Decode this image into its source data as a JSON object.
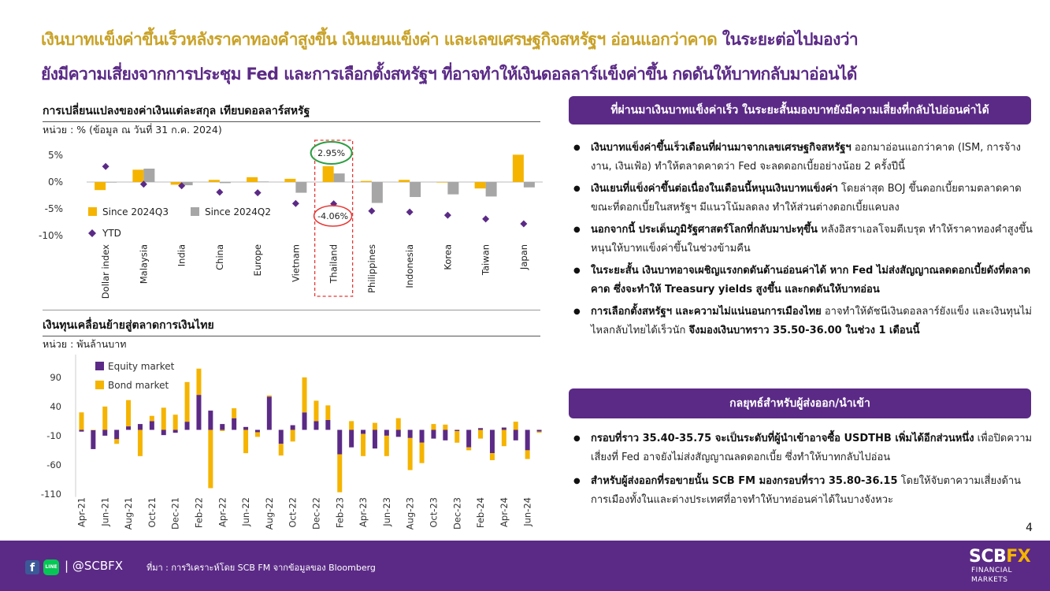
{
  "headline": {
    "line1_part1": "เงินบาทแข็งค่าขึ้นเร็วหลังราคาทองคำสูงขึ้น เงินเยนแข็งค่า และเลขเศรษฐกิจสหรัฐฯ อ่อนแอกว่าคาด",
    "line1_part2": "ในระยะต่อไปมองว่า",
    "line2": "ยังมีความเสี่ยงจากการประชุม Fed และการเลือกตั้งสหรัฐฯ ที่อาจทำให้เงินดอลลาร์แข็งค่าขึ้น กดดันให้บาทกลับมาอ่อนได้"
  },
  "colors": {
    "brand_purple": "#5b2a86",
    "gold": "#f5b400",
    "gray": "#a6a6a6",
    "ytd_purple": "#5b2a86",
    "highlight_red": "#e53935",
    "highlight_green": "#2e9e44",
    "headline_gold": "#c9a227"
  },
  "chart1": {
    "title": "การเปลี่ยนแปลงของค่าเงินแต่ละสกุล เทียบดอลลาร์สหรัฐ",
    "unit": "หน่วย : % (ข้อมูล ณ วันที่ 31 ก.ค. 2024)",
    "annotation_high": "2.95%",
    "annotation_low": "-4.06%"
  },
  "chart2": {
    "title": "เงินทุนเคลื่อนย้ายสู่ตลาดการเงินไทย",
    "unit": "หน่วย : พันล้านบาท"
  },
  "chart_data": [
    {
      "type": "bar",
      "categories": [
        "Dollar index",
        "Malaysia",
        "India",
        "China",
        "Europe",
        "Vietnam",
        "Thailand",
        "Philippines",
        "Indonesia",
        "Korea",
        "Taiwan",
        "Japan"
      ],
      "series": [
        {
          "name": "Since 2024Q3",
          "kind": "bar",
          "values": [
            -1.5,
            2.3,
            -0.5,
            0.4,
            0.9,
            0.6,
            2.95,
            0.2,
            0.4,
            -0.1,
            -1.2,
            5.1
          ]
        },
        {
          "name": "Since 2024Q2",
          "kind": "bar",
          "values": [
            -0.1,
            2.5,
            -0.6,
            -0.2,
            0.1,
            -2.0,
            1.6,
            -3.9,
            -2.8,
            -2.3,
            -2.7,
            -1.0
          ]
        },
        {
          "name": "YTD",
          "kind": "marker",
          "values": [
            2.9,
            -0.4,
            -0.7,
            -1.9,
            -2.0,
            -4.0,
            -4.06,
            -5.4,
            -5.6,
            -6.2,
            -6.9,
            -7.8
          ]
        }
      ],
      "yticks": [
        "5%",
        "0%",
        "-5%",
        "-10%"
      ],
      "ylim": [
        -10,
        5
      ],
      "legend": "inside-bottom-left",
      "highlight": "Thailand"
    },
    {
      "type": "bar",
      "stacked": true,
      "categories": [
        "Apr-21",
        "May-21",
        "Jun-21",
        "Jul-21",
        "Aug-21",
        "Sep-21",
        "Oct-21",
        "Nov-21",
        "Dec-21",
        "Jan-22",
        "Feb-22",
        "Mar-22",
        "Apr-22",
        "May-22",
        "Jun-22",
        "Jul-22",
        "Aug-22",
        "Sep-22",
        "Oct-22",
        "Nov-22",
        "Dec-22",
        "Jan-23",
        "Feb-23",
        "Mar-23",
        "Apr-23",
        "May-23",
        "Jun-23",
        "Jul-23",
        "Aug-23",
        "Sep-23",
        "Oct-23",
        "Nov-23",
        "Dec-23",
        "Jan-24",
        "Feb-24",
        "Mar-24",
        "Apr-24",
        "May-24",
        "Jun-24",
        "Jul-24"
      ],
      "tick_labels": [
        "Apr-21",
        "Jun-21",
        "Aug-21",
        "Oct-21",
        "Dec-21",
        "Feb-22",
        "Apr-22",
        "Jun-22",
        "Aug-22",
        "Oct-22",
        "Dec-22",
        "Feb-23",
        "Apr-23",
        "Jun-23",
        "Aug-23",
        "Oct-23",
        "Dec-23",
        "Feb-24",
        "Apr-24",
        "Jun-24"
      ],
      "series": [
        {
          "name": "Equity market",
          "values": [
            -3,
            -33,
            -10,
            -16,
            6,
            10,
            15,
            -9,
            -5,
            14,
            60,
            33,
            10,
            20,
            5,
            -4,
            57,
            -24,
            8,
            30,
            15,
            17,
            -42,
            -30,
            -7,
            -32,
            -10,
            -12,
            -14,
            -22,
            -15,
            -18,
            -2,
            -30,
            3,
            -40,
            4,
            -18,
            -35,
            -3
          ]
        },
        {
          "name": "Bond market",
          "values": [
            30,
            0,
            40,
            -8,
            45,
            -45,
            9,
            38,
            26,
            68,
            45,
            -100,
            -2,
            17,
            -40,
            -8,
            2,
            -20,
            -20,
            60,
            35,
            25,
            -65,
            15,
            -38,
            12,
            -35,
            20,
            -55,
            -35,
            10,
            9,
            -20,
            -5,
            -15,
            -12,
            -28,
            14,
            -15,
            -2
          ]
        }
      ],
      "yticks": [
        "90",
        "40",
        "-10",
        "-60",
        "-110"
      ],
      "ylim": [
        -115,
        115
      ],
      "legend": "top-left"
    }
  ],
  "panel1": {
    "banner": "ที่ผ่านมาเงินบาทแข็งค่าเร็ว ในระยะสั้นมองบาทยังมีความเสี่ยงที่กลับไปอ่อนค่าได้",
    "bullets": [
      {
        "bold": "เงินบาทแข็งค่าขึ้นเร็วเดือนที่ผ่านมาจากเลขเศรษฐกิจสหรัฐฯ",
        "text": " ออกมาอ่อนแอกว่าคาด (ISM, การจ้างงาน, เงินเฟ้อ) ทำให้ตลาดคาดว่า Fed จะลดดอกเบี้ยอย่างน้อย 2 ครั้งปีนี้"
      },
      {
        "bold": "เงินเยนที่แข็งค่าขึ้นต่อเนื่องในเดือนนี้หนุนเงินบาทแข็งค่า",
        "text": " โดยล่าสุด BOJ ขึ้นดอกเบี้ยตามตลาดคาด ขณะที่ดอกเบี้ยในสหรัฐฯ มีแนวโน้มลดลง ทำให้ส่วนต่างดอกเบี้ยแคบลง"
      },
      {
        "bold": "นอกจากนี้ ประเด็นภูมิรัฐศาสตร์โลกที่กลับมาปะทุขึ้น",
        "text": " หลังอิสราเอลโจมตีเบรุต ทำให้ราคาทองคำสูงขึ้น หนุนให้บาทแข็งค่าขึ้นในช่วงข้ามคืน"
      },
      {
        "bold": "ในระยะสั้น เงินบาทอาจเผชิญแรงกดดันด้านอ่อนค่าได้ หาก Fed ไม่ส่งสัญญาณลดดอกเบี้ยดังที่ตลาดคาด ซึ่งจะทำให้ Treasury yields สูงขึ้น และกดดันให้บาทอ่อน",
        "text": ""
      },
      {
        "bold": "การเลือกตั้งสหรัฐฯ และความไม่แน่นอนการเมืองไทย",
        "text": " อาจทำให้ดัชนีเงินดอลลาร์ยังแข็ง และเงินทุนไม่ไหลกลับไทยได้เร็วนัก ",
        "bold2": "จึงมองเงินบาทราว 35.50-36.00 ในช่วง 1 เดือนนี้"
      }
    ]
  },
  "panel2": {
    "banner": "กลยุทธ์สำหรับผู้ส่งออก/นำเข้า",
    "bullets": [
      {
        "bold": "กรอบที่ราว 35.40-35.75 จะเป็นระดับที่ผู้นำเข้าอาจซื้อ USDTHB เพิ่มได้อีกส่วนหนึ่ง",
        "text": " เพื่อปิดความเสี่ยงที่ Fed อาจยังไม่ส่งสัญญาณลดดอกเบี้ย ซึ่งทำให้บาทกลับไปอ่อน"
      },
      {
        "bold": "สำหรับผู้ส่งออกที่รอขายนั้น SCB FM มองกรอบที่ราว 35.80-36.15",
        "text": " โดยให้จับตาความเสี่ยงด้านการเมืองทั้งในและต่างประเทศที่อาจทำให้บาทอ่อนค่าได้ในบางจังหวะ"
      }
    ]
  },
  "page_number": "4",
  "footer": {
    "fb_icon": "facebook-icon",
    "line_icon": "line-icon",
    "line_glyph": "LINE",
    "fb_glyph": "f",
    "handle": "| @SCBFX",
    "source": "ที่มา : การวิเคราะห์โดย SCB FM จากข้อมูลของ Bloomberg",
    "logo_scb": "SCB",
    "logo_fx": "FX",
    "logo_line2": "FINANCIAL",
    "logo_line3": "MARKETS"
  }
}
